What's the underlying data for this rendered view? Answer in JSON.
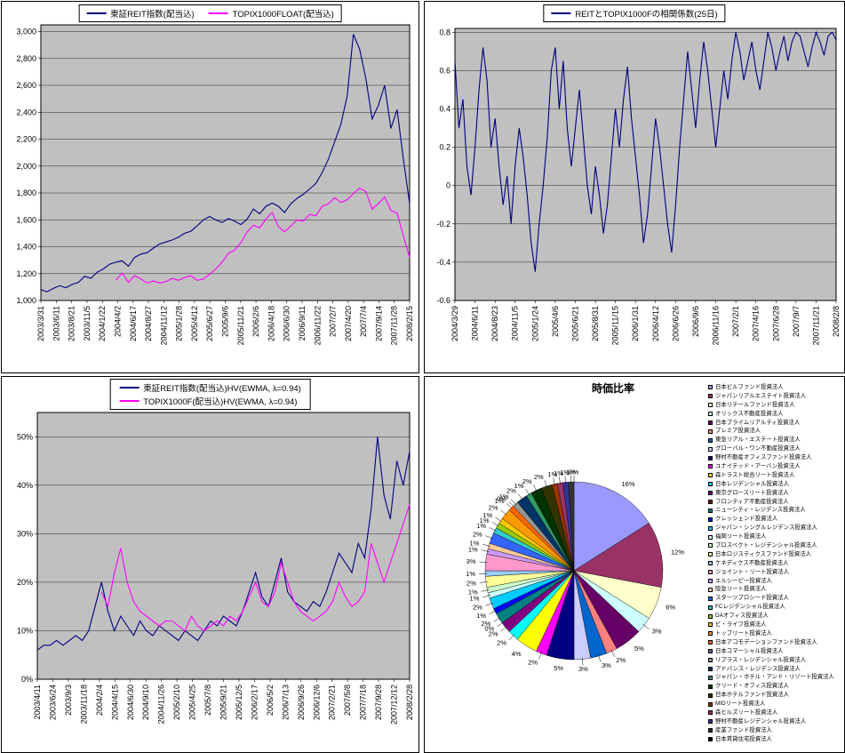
{
  "page": {
    "background": "#FFFFFF",
    "plot_background": "#C0C0C0"
  },
  "chart_data": [
    {
      "type": "line",
      "title": "",
      "legend_position": "top",
      "grid": true,
      "plot_bg": "#C0C0C0",
      "y_axis": {
        "min": 1000,
        "plot_max": 3050,
        "tick_min": 1000,
        "tick_max": 3000,
        "step": 200,
        "format": "comma"
      },
      "x_count": 60,
      "x_tick_labels": [
        "2003/3/31",
        "2003/6/11",
        "2003/8/21",
        "2003/11/5",
        "2004/1/22",
        "2004/4/2",
        "2004/6/17",
        "2004/8/27",
        "2004/11/12",
        "2005/1/28",
        "2005/4/12",
        "2005/6/27",
        "2005/9/6",
        "2005/11/21",
        "2006/2/6",
        "2006/4/18",
        "2006/6/30",
        "2006/9/11",
        "2006/11/22",
        "2007/2/7",
        "2007/4/20",
        "2007/7/4",
        "2007/9/14",
        "2007/11/28",
        "2008/2/15"
      ],
      "series": [
        {
          "name": "東証REIT指数(配当込)",
          "color": "#000080",
          "start_index": 0,
          "values": [
            1080,
            1065,
            1090,
            1110,
            1095,
            1120,
            1135,
            1180,
            1165,
            1210,
            1235,
            1270,
            1285,
            1295,
            1255,
            1320,
            1345,
            1355,
            1390,
            1420,
            1435,
            1450,
            1470,
            1500,
            1515,
            1555,
            1600,
            1625,
            1600,
            1580,
            1610,
            1590,
            1565,
            1605,
            1680,
            1645,
            1700,
            1725,
            1700,
            1655,
            1720,
            1760,
            1790,
            1830,
            1870,
            1950,
            2050,
            2180,
            2310,
            2520,
            2980,
            2870,
            2650,
            2350,
            2450,
            2600,
            2280,
            2420,
            2050,
            1720
          ]
        },
        {
          "name": "TOPIX1000FLOAT(配当込)",
          "color": "#FF00FF",
          "start_index": 12,
          "values": [
            1150,
            1205,
            1135,
            1185,
            1160,
            1130,
            1145,
            1130,
            1140,
            1165,
            1150,
            1170,
            1185,
            1150,
            1160,
            1195,
            1235,
            1285,
            1350,
            1375,
            1430,
            1510,
            1560,
            1540,
            1605,
            1655,
            1550,
            1510,
            1555,
            1600,
            1590,
            1640,
            1630,
            1700,
            1720,
            1765,
            1730,
            1750,
            1795,
            1835,
            1810,
            1680,
            1720,
            1770,
            1670,
            1650,
            1480,
            1320
          ]
        }
      ]
    },
    {
      "type": "line",
      "title": "",
      "legend_position": "top",
      "grid": true,
      "plot_bg": "#C0C0C0",
      "y_axis": {
        "min": -0.6,
        "plot_max": 0.82,
        "tick_min": -0.6,
        "tick_max": 0.8,
        "step": 0.2,
        "format": "plain"
      },
      "x_count": 96,
      "x_tick_labels": [
        "2004/3/29",
        "2004/6/11",
        "2004/8/23",
        "2004/11/5",
        "2005/1/24",
        "2005/4/6",
        "2005/6/21",
        "2005/8/31",
        "2005/11/15",
        "2006/1/31",
        "2006/4/12",
        "2006/6/26",
        "2006/9/6",
        "2006/11/16",
        "2007/2/1",
        "2007/4/16",
        "2007/6/28",
        "2007/9/7",
        "2007/11/21",
        "2008/2/8"
      ],
      "series": [
        {
          "name": "REITとTOPIX1000Fの相関係数(25日)",
          "color": "#000080",
          "start_index": 0,
          "values": [
            0.65,
            0.3,
            0.45,
            0.1,
            -0.05,
            0.2,
            0.5,
            0.72,
            0.55,
            0.2,
            0.35,
            0.1,
            -0.1,
            0.05,
            -0.2,
            0.1,
            0.3,
            0.15,
            -0.05,
            -0.3,
            -0.45,
            -0.2,
            0.0,
            0.25,
            0.6,
            0.72,
            0.4,
            0.65,
            0.3,
            0.1,
            0.3,
            0.5,
            0.25,
            0.0,
            -0.15,
            0.1,
            -0.05,
            -0.25,
            -0.1,
            0.15,
            0.4,
            0.2,
            0.45,
            0.62,
            0.35,
            0.15,
            -0.05,
            -0.3,
            -0.15,
            0.1,
            0.35,
            0.2,
            0.0,
            -0.2,
            -0.35,
            -0.1,
            0.2,
            0.45,
            0.7,
            0.5,
            0.3,
            0.55,
            0.75,
            0.6,
            0.4,
            0.2,
            0.4,
            0.6,
            0.45,
            0.65,
            0.8,
            0.7,
            0.55,
            0.65,
            0.75,
            0.6,
            0.5,
            0.65,
            0.8,
            0.72,
            0.6,
            0.7,
            0.78,
            0.65,
            0.75,
            0.8,
            0.78,
            0.7,
            0.62,
            0.72,
            0.8,
            0.75,
            0.68,
            0.78,
            0.8,
            0.76
          ]
        }
      ]
    },
    {
      "type": "line",
      "title": "",
      "legend_position": "top",
      "grid": true,
      "plot_bg": "#C0C0C0",
      "y_axis": {
        "min": 0,
        "plot_max": 55,
        "tick_min": 0,
        "tick_max": 50,
        "step": 10,
        "format": "percent"
      },
      "x_count": 59,
      "x_tick_labels": [
        "2003/4/11",
        "2003/6/24",
        "2003/9/3",
        "2003/11/18",
        "2004/2/4",
        "2004/4/15",
        "2004/6/30",
        "2004/9/10",
        "2004/11/26",
        "2005/2/10",
        "2005/4/25",
        "2005/7/8",
        "2005/9/21",
        "2005/12/5",
        "2006/2/17",
        "2006/5/2",
        "2006/7/13",
        "2006/9/26",
        "2006/12/6",
        "2007/2/21",
        "2007/5/8",
        "2007/7/18",
        "2007/9/28",
        "2007/12/12",
        "2008/2/28"
      ],
      "series": [
        {
          "name": "東証REIT指数(配当込)HV(EWMA, λ=0.94)",
          "color": "#000080",
          "start_index": 0,
          "values": [
            6,
            7,
            7,
            8,
            7,
            8,
            9,
            8,
            10,
            15,
            20,
            14,
            10,
            13,
            11,
            9,
            12,
            10,
            9,
            11,
            10,
            9,
            8,
            10,
            9,
            8,
            10,
            12,
            11,
            13,
            12,
            11,
            14,
            18,
            22,
            17,
            15,
            20,
            25,
            18,
            16,
            15,
            14,
            16,
            15,
            18,
            22,
            26,
            24,
            22,
            28,
            25,
            35,
            50,
            38,
            33,
            45,
            40,
            47
          ]
        },
        {
          "name": "TOPIX1000F(配当込)HV(EWMA, λ=0.94)",
          "color": "#FF00FF",
          "start_index": 10,
          "values": [
            18,
            15,
            22,
            27,
            20,
            16,
            14,
            13,
            12,
            11,
            12,
            12,
            11,
            10,
            13,
            11,
            10,
            11,
            12,
            11,
            13,
            12,
            14,
            17,
            20,
            16,
            15,
            18,
            24,
            20,
            16,
            14,
            13,
            12,
            13,
            14,
            16,
            20,
            17,
            15,
            16,
            18,
            28,
            24,
            20,
            24,
            28,
            32,
            36
          ]
        }
      ]
    },
    {
      "type": "pie",
      "title": "時価比率",
      "legend_position": "right",
      "label_format": "percent",
      "labels": [
        "日本ビルファンド投資法人",
        "ジャパンリアルエステイト投資法人",
        "日本リテールファンド投資法人",
        "オリックス不動産投資法人",
        "日本プライムリアルティ投資法人",
        "プレミア投資法人",
        "東急リアル・エステート投資法人",
        "グローバル・ワン不動産投資法人",
        "野村不動産オフィスファンド投資法人",
        "ユナイテッド・アーバン投資法人",
        "森トラスト総合リート投資法人",
        "日本レジデンシャル投資法人",
        "東京グロースリート投資法人",
        "フロンティア不動産投資法人",
        "ニューシティ・レジデンス投資法人",
        "クレッシェンド投資法人",
        "ジャパン・シングルレジデンス投資法人",
        "福岡リート投資法人",
        "プロスペクト・レジデンシャル投資法人",
        "日本ロジスティクスファンド投資法人",
        "ケネディクス不動産投資法人",
        "ジョイント・リート投資法人",
        "エルシーピー投資法人",
        "阪急リート投資法人",
        "スターツプロシード投資法人",
        "FCレジデンシャル投資法人",
        "DAオフィス投資法人",
        "ビ・ライフ投資法人",
        "トップリート投資法人",
        "日本アコモデーションファンド投資法人",
        "日本コマーシャル投資法人",
        "リプラス・レジデンシャル投資法人",
        "アドバンス・レジデンス投資法人",
        "ジャパン・ホテル・アンド・リゾート投資法人",
        "クリード・オフィス投資法人",
        "日本ホテルファンド投資法人",
        "MIDリート投資法人",
        "森ヒルズリート投資法人",
        "野村不動産レジデンシャル投資法人",
        "産業ファンド投資法人",
        "日本賃貸住宅投資法人"
      ],
      "values": [
        16,
        12,
        6,
        3,
        5,
        2,
        3,
        3,
        5,
        2,
        4,
        2,
        2,
        0,
        2,
        1,
        2,
        1,
        1,
        2,
        1,
        3,
        1,
        1,
        2,
        1,
        1,
        1,
        2,
        1,
        0,
        1,
        2,
        1,
        2,
        2,
        1,
        1,
        1,
        1,
        0
      ],
      "colors": [
        "#9999FF",
        "#993366",
        "#FFFFCC",
        "#CCFFFF",
        "#660066",
        "#FF8080",
        "#0066CC",
        "#CCCCFF",
        "#000080",
        "#FF00FF",
        "#FFFF00",
        "#00FFFF",
        "#800080",
        "#800000",
        "#008080",
        "#0000FF",
        "#00CCFF",
        "#CCFFFF",
        "#CCFFCC",
        "#FFFF99",
        "#99CCFF",
        "#FF99CC",
        "#CC99FF",
        "#FFCC99",
        "#3366FF",
        "#33CCCC",
        "#99CC00",
        "#FFCC00",
        "#FF9900",
        "#FF6600",
        "#666699",
        "#969696",
        "#003366",
        "#339966",
        "#003300",
        "#333300",
        "#993300",
        "#993366",
        "#333399",
        "#333333",
        "#000000"
      ]
    }
  ]
}
